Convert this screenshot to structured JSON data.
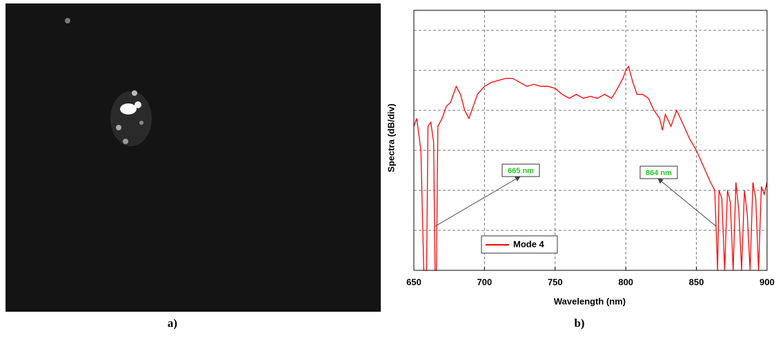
{
  "panel_labels": [
    "a)",
    "b)"
  ],
  "chart_data": {
    "type": "line",
    "xlabel": "Wavelength (nm)",
    "ylabel": "Spectra (dB/div)",
    "x": [
      650,
      652,
      655,
      657,
      659,
      660,
      662,
      664,
      665,
      666,
      667,
      670,
      673,
      676,
      680,
      683,
      686,
      689,
      692,
      695,
      700,
      705,
      710,
      715,
      720,
      725,
      730,
      735,
      740,
      745,
      750,
      755,
      760,
      765,
      770,
      775,
      780,
      785,
      790,
      795,
      798,
      800,
      802,
      805,
      808,
      812,
      816,
      820,
      824,
      826,
      828,
      832,
      836,
      840,
      845,
      850,
      855,
      860,
      863,
      865,
      866,
      868,
      870,
      872,
      874,
      876,
      878,
      880,
      882,
      884,
      886,
      888,
      890,
      892,
      894,
      896,
      898,
      900
    ],
    "series": [
      {
        "name": "Mode 4",
        "color": "#ff0000",
        "values": [
          36,
          38,
          30,
          0,
          0,
          36,
          37,
          32,
          0,
          0,
          36,
          38,
          41,
          42,
          46,
          44,
          40,
          38,
          41,
          44,
          46,
          47,
          47.5,
          48,
          48,
          47,
          46,
          46.5,
          46,
          46,
          45.5,
          44,
          43,
          44,
          43,
          43.5,
          43,
          44,
          43,
          46,
          48,
          50,
          51,
          47,
          44,
          44,
          43,
          40,
          38,
          35,
          39,
          36,
          40,
          37,
          33,
          30,
          26,
          22,
          20,
          0,
          20,
          18,
          0,
          20,
          17,
          0,
          22,
          15,
          0,
          20,
          14,
          0,
          22,
          18,
          0,
          21,
          19,
          22
        ]
      }
    ],
    "xlim": [
      650,
      900
    ],
    "xticks": [
      650,
      700,
      750,
      800,
      850,
      900
    ],
    "ylim": [
      0,
      65
    ],
    "yticks": [
      10,
      20,
      30,
      40,
      50,
      60
    ],
    "grid": true,
    "annotations": [
      {
        "text": "665 nm",
        "x": 665,
        "y": 11
      },
      {
        "text": "864 nm",
        "x": 864,
        "y": 11
      }
    ]
  }
}
